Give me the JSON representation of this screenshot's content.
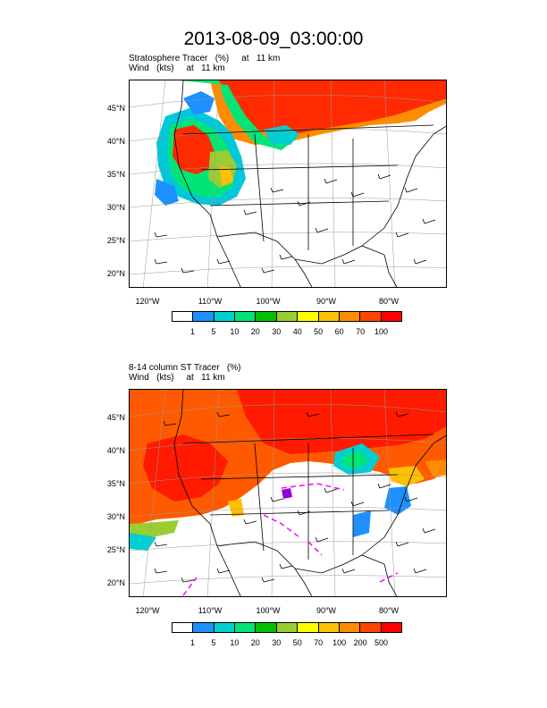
{
  "title": "2013-08-09_03:00:00",
  "panels": [
    {
      "title_line1": "Stratosphere Tracer   (%)     at   11 km",
      "title_line2": "Wind   (kts)     at   11 km",
      "colorbar_labels": [
        "1",
        "5",
        "10",
        "20",
        "30",
        "40",
        "50",
        "60",
        "70",
        "100"
      ],
      "colorbar_colors": [
        "#ffffff",
        "#1e90ff",
        "#00ced1",
        "#00e676",
        "#00c000",
        "#9acd32",
        "#ffff00",
        "#ffc000",
        "#ff8c00",
        "#ff4500",
        "#ff0000"
      ]
    },
    {
      "title_line1": "8-14 column ST Tracer   (%)",
      "title_line2": "Wind   (kts)     at   11 km",
      "colorbar_labels": [
        "1",
        "5",
        "10",
        "20",
        "30",
        "50",
        "70",
        "100",
        "200",
        "500"
      ],
      "colorbar_colors": [
        "#ffffff",
        "#1e90ff",
        "#00ced1",
        "#00e676",
        "#00c000",
        "#9acd32",
        "#ffff00",
        "#ffc000",
        "#ff8c00",
        "#ff4500",
        "#ff0000"
      ]
    }
  ],
  "lat_labels": [
    "45°N",
    "40°N",
    "35°N",
    "30°N",
    "25°N",
    "20°N"
  ],
  "lon_labels": [
    "120°W",
    "110°W",
    "100°W",
    "90°W",
    "80°W"
  ]
}
